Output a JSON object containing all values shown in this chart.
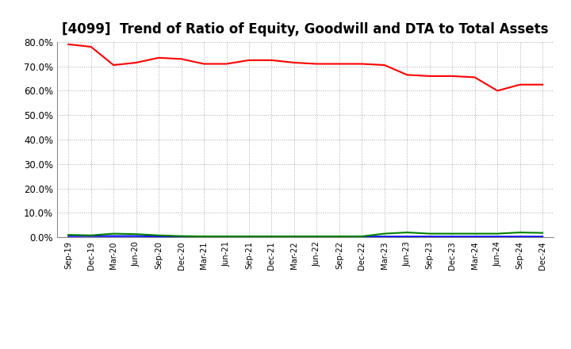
{
  "title": "[4099]  Trend of Ratio of Equity, Goodwill and DTA to Total Assets",
  "x_labels": [
    "Sep-19",
    "Dec-19",
    "Mar-20",
    "Jun-20",
    "Sep-20",
    "Dec-20",
    "Mar-21",
    "Jun-21",
    "Sep-21",
    "Dec-21",
    "Mar-22",
    "Jun-22",
    "Sep-22",
    "Dec-22",
    "Mar-23",
    "Jun-23",
    "Sep-23",
    "Dec-23",
    "Mar-24",
    "Jun-24",
    "Sep-24",
    "Dec-24"
  ],
  "equity": [
    79.0,
    78.0,
    70.5,
    71.5,
    73.5,
    73.0,
    71.0,
    71.0,
    72.5,
    72.5,
    71.5,
    71.0,
    71.0,
    71.0,
    70.5,
    66.5,
    66.0,
    66.0,
    65.5,
    60.0,
    62.5,
    62.5
  ],
  "goodwill": [
    0.5,
    0.5,
    0.5,
    0.5,
    0.4,
    0.3,
    0.3,
    0.3,
    0.3,
    0.3,
    0.3,
    0.3,
    0.3,
    0.3,
    0.3,
    0.3,
    0.3,
    0.3,
    0.3,
    0.3,
    0.3,
    0.3
  ],
  "dta": [
    1.0,
    0.8,
    1.5,
    1.3,
    0.8,
    0.5,
    0.4,
    0.4,
    0.4,
    0.4,
    0.4,
    0.4,
    0.4,
    0.4,
    1.5,
    2.0,
    1.5,
    1.5,
    1.5,
    1.5,
    2.0,
    1.8
  ],
  "equity_color": "#ff0000",
  "goodwill_color": "#0000ff",
  "dta_color": "#008000",
  "ylim": [
    0.0,
    80.0
  ],
  "yticks": [
    0.0,
    10.0,
    20.0,
    30.0,
    40.0,
    50.0,
    60.0,
    70.0,
    80.0
  ],
  "background_color": "#ffffff",
  "grid_color": "#aaaaaa",
  "title_fontsize": 12
}
